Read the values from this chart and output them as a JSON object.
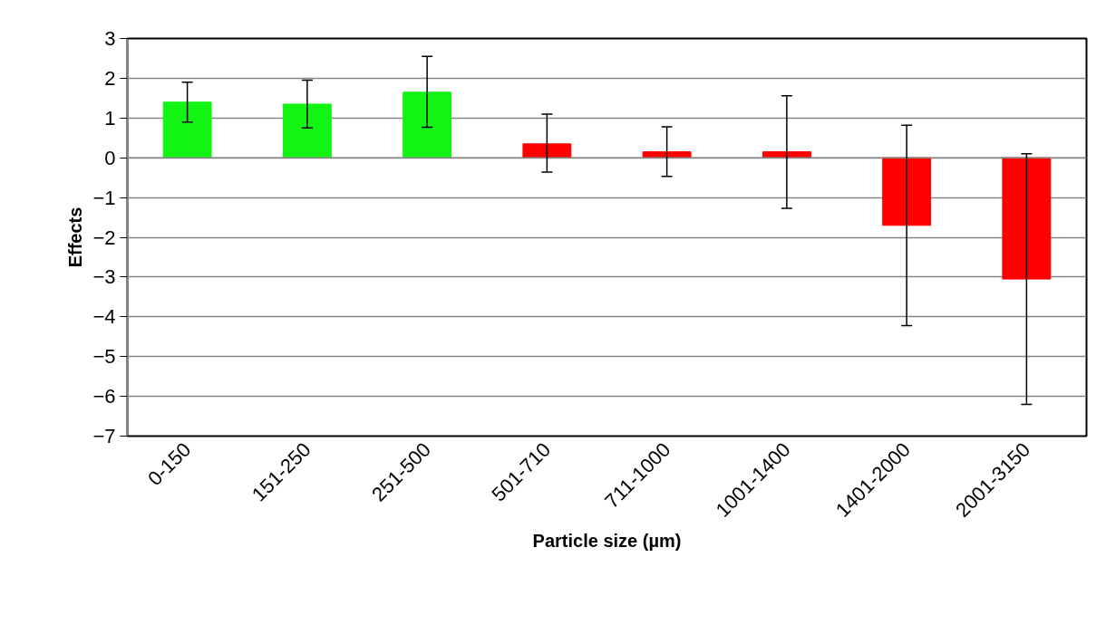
{
  "chart_data": {
    "type": "bar",
    "xlabel": "Particle size (µm)",
    "ylabel": "Effects",
    "categories": [
      "0-150",
      "151-250",
      "251-500",
      "501-710",
      "711-1000",
      "1001-1400",
      "1401-2000",
      "2001-3150"
    ],
    "values": [
      1.4,
      1.35,
      1.65,
      0.35,
      0.15,
      0.15,
      -1.7,
      -3.05
    ],
    "colors": [
      "#14f414",
      "#14f414",
      "#14f414",
      "#ff0000",
      "#ff0000",
      "#ff0000",
      "#ff0000",
      "#ff0000"
    ],
    "errors": [
      [
        0.9,
        1.9
      ],
      [
        0.75,
        1.95
      ],
      [
        0.77,
        2.55
      ],
      [
        -0.36,
        1.1
      ],
      [
        -0.47,
        0.78
      ],
      [
        -1.27,
        1.56
      ],
      [
        -4.22,
        0.82
      ],
      [
        -6.2,
        0.1
      ]
    ],
    "ylim": [
      -7,
      3
    ],
    "yticks": [
      -7,
      -6,
      -5,
      -4,
      -3,
      -2,
      -1,
      0,
      1,
      2,
      3
    ],
    "grid": "y"
  }
}
